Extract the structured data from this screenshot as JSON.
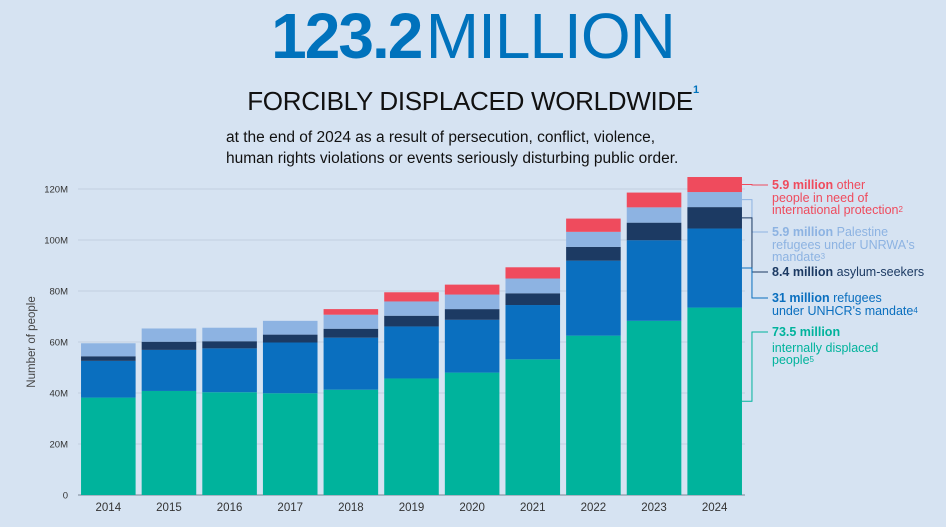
{
  "header": {
    "big_number": "123.2",
    "big_unit": "MILLION",
    "subtitle": "FORCIBLY DISPLACED WORLDWIDE",
    "subtitle_footnote": "1",
    "intro_line1": "at the end of 2024 as a result of persecution, conflict, violence,",
    "intro_line2": "human rights violations or events seriously disturbing public order."
  },
  "legend": [
    {
      "value": "5.9 million",
      "line1": "other",
      "line2": "people in need of",
      "line3": "international protection",
      "footnote": "2",
      "color": "#ef4b5d"
    },
    {
      "value": "5.9 million",
      "line1": "Palestine",
      "line2": "refugees under UNRWA's",
      "line3": "mandate",
      "footnote": "3",
      "color": "#8db3e2"
    },
    {
      "value": "8.4 million",
      "line1": "asylum-seekers",
      "line2": "",
      "line3": "",
      "footnote": "",
      "color": "#1c3a63"
    },
    {
      "value": "31 million",
      "line1": "refugees",
      "line2": "under UNHCR's mandate",
      "line3": "",
      "footnote": "4",
      "color": "#0a6fbf"
    },
    {
      "value": "73.5 million",
      "line1": "",
      "line2": "internally displaced",
      "line3": "people",
      "footnote": "5",
      "color": "#00b39c"
    }
  ],
  "chart_data": {
    "type": "bar",
    "stacked": true,
    "ylabel": "Number of people",
    "ylim": [
      0,
      120
    ],
    "y_ticks": [
      "0",
      "20M",
      "40M",
      "60M",
      "80M",
      "100M",
      "120M"
    ],
    "grid": true,
    "categories": [
      "2014",
      "2015",
      "2016",
      "2017",
      "2018",
      "2019",
      "2020",
      "2021",
      "2022",
      "2023",
      "2024"
    ],
    "series": [
      {
        "name": "internally displaced people",
        "color": "#00b39c",
        "values": [
          38.2,
          40.8,
          40.3,
          39.9,
          41.3,
          45.7,
          48.0,
          53.2,
          62.5,
          68.3,
          73.5
        ]
      },
      {
        "name": "refugees under UNHCR's mandate",
        "color": "#0a6fbf",
        "values": [
          14.4,
          16.1,
          17.2,
          19.9,
          20.4,
          20.4,
          20.7,
          21.3,
          29.4,
          31.6,
          31.0
        ]
      },
      {
        "name": "asylum-seekers",
        "color": "#1c3a63",
        "values": [
          1.8,
          3.2,
          2.8,
          3.1,
          3.5,
          4.2,
          4.2,
          4.6,
          5.4,
          6.9,
          8.4
        ]
      },
      {
        "name": "Palestine refugees under UNRWA's mandate",
        "color": "#8db3e2",
        "values": [
          5.1,
          5.2,
          5.3,
          5.4,
          5.5,
          5.6,
          5.7,
          5.8,
          5.9,
          6.0,
          5.9
        ]
      },
      {
        "name": "other people in need of international protection",
        "color": "#ef4b5d",
        "values": [
          0,
          0,
          0,
          0,
          2.2,
          3.6,
          3.9,
          4.4,
          5.2,
          5.8,
          5.9
        ]
      }
    ]
  }
}
